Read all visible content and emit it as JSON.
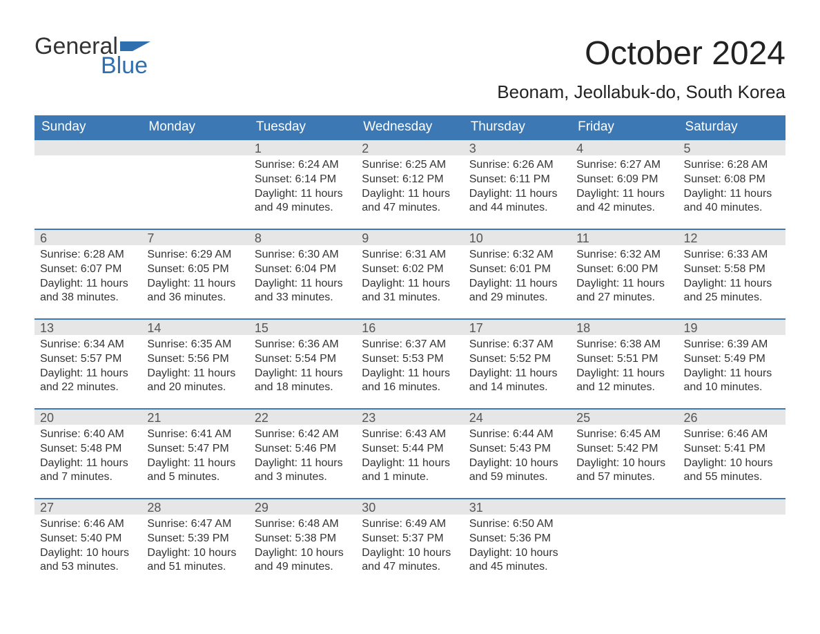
{
  "logo": {
    "word1": "General",
    "word2": "Blue",
    "flag_color": "#2f6faf"
  },
  "title": "October 2024",
  "subtitle": "Beonam, Jeollabuk-do, South Korea",
  "colors": {
    "header_bg": "#3b78b4",
    "header_text": "#ffffff",
    "daynum_bg": "#e6e6e6",
    "daynum_border": "#3b78b4",
    "body_text": "#333333",
    "logo_blue": "#2f6faf"
  },
  "day_headers": [
    "Sunday",
    "Monday",
    "Tuesday",
    "Wednesday",
    "Thursday",
    "Friday",
    "Saturday"
  ],
  "weeks": [
    [
      {
        "day": "",
        "sunrise": "",
        "sunset": "",
        "daylight": ""
      },
      {
        "day": "",
        "sunrise": "",
        "sunset": "",
        "daylight": ""
      },
      {
        "day": "1",
        "sunrise": "Sunrise: 6:24 AM",
        "sunset": "Sunset: 6:14 PM",
        "daylight": "Daylight: 11 hours and 49 minutes."
      },
      {
        "day": "2",
        "sunrise": "Sunrise: 6:25 AM",
        "sunset": "Sunset: 6:12 PM",
        "daylight": "Daylight: 11 hours and 47 minutes."
      },
      {
        "day": "3",
        "sunrise": "Sunrise: 6:26 AM",
        "sunset": "Sunset: 6:11 PM",
        "daylight": "Daylight: 11 hours and 44 minutes."
      },
      {
        "day": "4",
        "sunrise": "Sunrise: 6:27 AM",
        "sunset": "Sunset: 6:09 PM",
        "daylight": "Daylight: 11 hours and 42 minutes."
      },
      {
        "day": "5",
        "sunrise": "Sunrise: 6:28 AM",
        "sunset": "Sunset: 6:08 PM",
        "daylight": "Daylight: 11 hours and 40 minutes."
      }
    ],
    [
      {
        "day": "6",
        "sunrise": "Sunrise: 6:28 AM",
        "sunset": "Sunset: 6:07 PM",
        "daylight": "Daylight: 11 hours and 38 minutes."
      },
      {
        "day": "7",
        "sunrise": "Sunrise: 6:29 AM",
        "sunset": "Sunset: 6:05 PM",
        "daylight": "Daylight: 11 hours and 36 minutes."
      },
      {
        "day": "8",
        "sunrise": "Sunrise: 6:30 AM",
        "sunset": "Sunset: 6:04 PM",
        "daylight": "Daylight: 11 hours and 33 minutes."
      },
      {
        "day": "9",
        "sunrise": "Sunrise: 6:31 AM",
        "sunset": "Sunset: 6:02 PM",
        "daylight": "Daylight: 11 hours and 31 minutes."
      },
      {
        "day": "10",
        "sunrise": "Sunrise: 6:32 AM",
        "sunset": "Sunset: 6:01 PM",
        "daylight": "Daylight: 11 hours and 29 minutes."
      },
      {
        "day": "11",
        "sunrise": "Sunrise: 6:32 AM",
        "sunset": "Sunset: 6:00 PM",
        "daylight": "Daylight: 11 hours and 27 minutes."
      },
      {
        "day": "12",
        "sunrise": "Sunrise: 6:33 AM",
        "sunset": "Sunset: 5:58 PM",
        "daylight": "Daylight: 11 hours and 25 minutes."
      }
    ],
    [
      {
        "day": "13",
        "sunrise": "Sunrise: 6:34 AM",
        "sunset": "Sunset: 5:57 PM",
        "daylight": "Daylight: 11 hours and 22 minutes."
      },
      {
        "day": "14",
        "sunrise": "Sunrise: 6:35 AM",
        "sunset": "Sunset: 5:56 PM",
        "daylight": "Daylight: 11 hours and 20 minutes."
      },
      {
        "day": "15",
        "sunrise": "Sunrise: 6:36 AM",
        "sunset": "Sunset: 5:54 PM",
        "daylight": "Daylight: 11 hours and 18 minutes."
      },
      {
        "day": "16",
        "sunrise": "Sunrise: 6:37 AM",
        "sunset": "Sunset: 5:53 PM",
        "daylight": "Daylight: 11 hours and 16 minutes."
      },
      {
        "day": "17",
        "sunrise": "Sunrise: 6:37 AM",
        "sunset": "Sunset: 5:52 PM",
        "daylight": "Daylight: 11 hours and 14 minutes."
      },
      {
        "day": "18",
        "sunrise": "Sunrise: 6:38 AM",
        "sunset": "Sunset: 5:51 PM",
        "daylight": "Daylight: 11 hours and 12 minutes."
      },
      {
        "day": "19",
        "sunrise": "Sunrise: 6:39 AM",
        "sunset": "Sunset: 5:49 PM",
        "daylight": "Daylight: 11 hours and 10 minutes."
      }
    ],
    [
      {
        "day": "20",
        "sunrise": "Sunrise: 6:40 AM",
        "sunset": "Sunset: 5:48 PM",
        "daylight": "Daylight: 11 hours and 7 minutes."
      },
      {
        "day": "21",
        "sunrise": "Sunrise: 6:41 AM",
        "sunset": "Sunset: 5:47 PM",
        "daylight": "Daylight: 11 hours and 5 minutes."
      },
      {
        "day": "22",
        "sunrise": "Sunrise: 6:42 AM",
        "sunset": "Sunset: 5:46 PM",
        "daylight": "Daylight: 11 hours and 3 minutes."
      },
      {
        "day": "23",
        "sunrise": "Sunrise: 6:43 AM",
        "sunset": "Sunset: 5:44 PM",
        "daylight": "Daylight: 11 hours and 1 minute."
      },
      {
        "day": "24",
        "sunrise": "Sunrise: 6:44 AM",
        "sunset": "Sunset: 5:43 PM",
        "daylight": "Daylight: 10 hours and 59 minutes."
      },
      {
        "day": "25",
        "sunrise": "Sunrise: 6:45 AM",
        "sunset": "Sunset: 5:42 PM",
        "daylight": "Daylight: 10 hours and 57 minutes."
      },
      {
        "day": "26",
        "sunrise": "Sunrise: 6:46 AM",
        "sunset": "Sunset: 5:41 PM",
        "daylight": "Daylight: 10 hours and 55 minutes."
      }
    ],
    [
      {
        "day": "27",
        "sunrise": "Sunrise: 6:46 AM",
        "sunset": "Sunset: 5:40 PM",
        "daylight": "Daylight: 10 hours and 53 minutes."
      },
      {
        "day": "28",
        "sunrise": "Sunrise: 6:47 AM",
        "sunset": "Sunset: 5:39 PM",
        "daylight": "Daylight: 10 hours and 51 minutes."
      },
      {
        "day": "29",
        "sunrise": "Sunrise: 6:48 AM",
        "sunset": "Sunset: 5:38 PM",
        "daylight": "Daylight: 10 hours and 49 minutes."
      },
      {
        "day": "30",
        "sunrise": "Sunrise: 6:49 AM",
        "sunset": "Sunset: 5:37 PM",
        "daylight": "Daylight: 10 hours and 47 minutes."
      },
      {
        "day": "31",
        "sunrise": "Sunrise: 6:50 AM",
        "sunset": "Sunset: 5:36 PM",
        "daylight": "Daylight: 10 hours and 45 minutes."
      },
      {
        "day": "",
        "sunrise": "",
        "sunset": "",
        "daylight": ""
      },
      {
        "day": "",
        "sunrise": "",
        "sunset": "",
        "daylight": ""
      }
    ]
  ]
}
